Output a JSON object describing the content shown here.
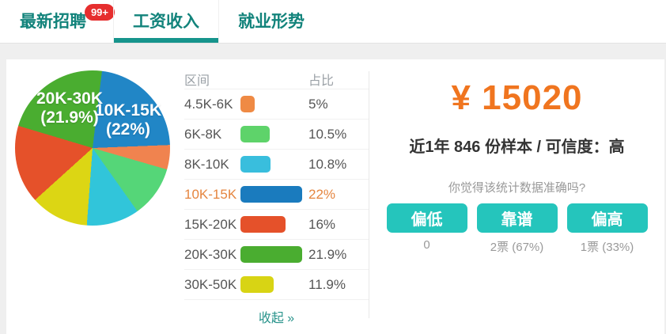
{
  "tabs": [
    {
      "label": "最新招聘",
      "badge": "99+",
      "active": false
    },
    {
      "label": "工资收入",
      "active": true
    },
    {
      "label": "就业形势",
      "active": false
    }
  ],
  "chart_data": {
    "type": "pie",
    "categories": [
      "10K-15K",
      "4.5K-6K",
      "6K-8K",
      "8K-10K",
      "30K-50K",
      "15K-20K",
      "20K-30K"
    ],
    "values": [
      22,
      5,
      10.5,
      10.8,
      11.9,
      16,
      21.9
    ],
    "colors": [
      "#2186c6",
      "#f0834f",
      "#55d678",
      "#31c5da",
      "#dcd614",
      "#e5512a",
      "#4aad30"
    ],
    "start_angle_deg": 7,
    "slice_labels": [
      {
        "line1": "20K-30K",
        "line2": "(21.9%)"
      },
      {
        "line1": "10K-15K",
        "line2": "(22%)"
      }
    ],
    "legend_position": "table at right"
  },
  "table": {
    "headers": [
      "区间",
      "占比"
    ],
    "rows": [
      {
        "range": "4.5K-6K",
        "pct": "5%",
        "value": 5,
        "color": "#ef8a44",
        "highlight": false
      },
      {
        "range": "6K-8K",
        "pct": "10.5%",
        "value": 10.5,
        "color": "#5ed36a",
        "highlight": false
      },
      {
        "range": "8K-10K",
        "pct": "10.8%",
        "value": 10.8,
        "color": "#39bedd",
        "highlight": false
      },
      {
        "range": "10K-15K",
        "pct": "22%",
        "value": 22,
        "color": "#1a7bbe",
        "highlight": true
      },
      {
        "range": "15K-20K",
        "pct": "16%",
        "value": 16,
        "color": "#e5512a",
        "highlight": false
      },
      {
        "range": "20K-30K",
        "pct": "21.9%",
        "value": 21.9,
        "color": "#4aad30",
        "highlight": false
      },
      {
        "range": "30K-50K",
        "pct": "11.9%",
        "value": 11.9,
        "color": "#d8d414",
        "highlight": false
      }
    ],
    "collapse_label": "收起 »"
  },
  "summary": {
    "salary": "¥ 15020",
    "sample_info": "近1年 846 份样本 / 可信度：高",
    "question": "你觉得该统计数据准确吗?",
    "votes": [
      {
        "label": "偏低",
        "count": "0"
      },
      {
        "label": "靠谱",
        "count": "2票 (67%)"
      },
      {
        "label": "偏高",
        "count": "1票 (33%)"
      }
    ]
  }
}
